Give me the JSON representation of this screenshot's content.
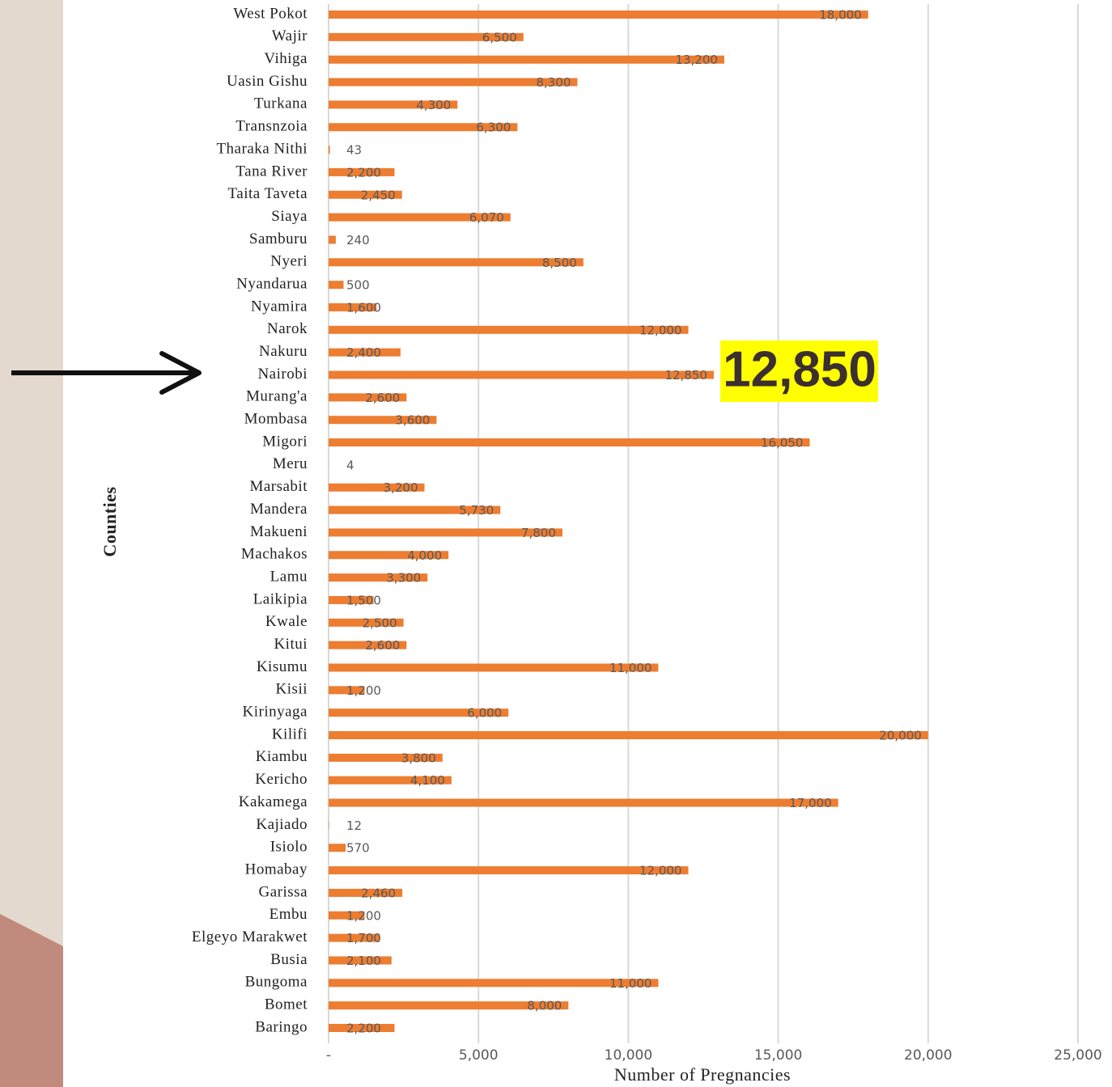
{
  "chart_data": {
    "type": "barh",
    "xlabel": "Number of Pregnancies",
    "ylabel": "Counties",
    "annotation": "12,850",
    "color": "#ed7d31",
    "grid": true,
    "categories": [
      "West Pokot",
      "Wajir",
      "Vihiga",
      "Uasin Gishu",
      "Turkana",
      "Transnzoia",
      "Tharaka Nithi",
      "Tana River",
      "Taita Taveta",
      "Siaya",
      "Samburu",
      "Nyeri",
      "Nyandarua",
      "Nyamira",
      "Narok",
      "Nakuru",
      "Nairobi",
      "Murang'a",
      "Mombasa",
      "Migori",
      "Meru",
      "Marsabit",
      "Mandera",
      "Makueni",
      "Machakos",
      "Lamu",
      "Laikipia",
      "Kwale",
      "Kitui",
      "Kisumu",
      "Kisii",
      "Kirinyaga",
      "Kilifi",
      "Kiambu",
      "Kericho",
      "Kakamega",
      "Kajiado",
      "Isiolo",
      "Homabay",
      "Garissa",
      "Embu",
      "Elgeyo Marakwet",
      "Busia",
      "Bungoma",
      "Bomet",
      "Baringo"
    ],
    "values": [
      18000,
      6500,
      13200,
      8300,
      4300,
      6300,
      43,
      2200,
      2450,
      6070,
      240,
      8500,
      500,
      1600,
      12000,
      2400,
      12850,
      2600,
      3600,
      16050,
      4,
      3200,
      5730,
      7800,
      4000,
      3300,
      1500,
      2500,
      2600,
      11000,
      1200,
      6000,
      20000,
      3800,
      4100,
      17000,
      12,
      570,
      12000,
      2460,
      1200,
      1700,
      2100,
      11000,
      8000,
      2200
    ],
    "value_labels": [
      "18,000",
      "6,500",
      "13,200",
      "8,300",
      "4,300",
      "6,300",
      "43",
      "2,200",
      "2,450",
      "6,070",
      "240",
      "8,500",
      "500",
      "1,600",
      "12,000",
      "2,400",
      "12,850",
      "2,600",
      "3,600",
      "16,050",
      "4",
      "3,200",
      "5,730",
      "7,800",
      "4,000",
      "3,300",
      "1,500",
      "2,500",
      "2,600",
      "11,000",
      "1,200",
      "6,000",
      "20,000",
      "3,800",
      "4,100",
      "17,000",
      "12",
      "570",
      "12,000",
      "2,460",
      "1,200",
      "1,700",
      "2,100",
      "11,000",
      "8,000",
      "2,200"
    ],
    "xlim": [
      0,
      25000
    ],
    "xticks": [
      {
        "value": 0,
        "label": "-"
      },
      {
        "value": 5000,
        "label": "5,000"
      },
      {
        "value": 10000,
        "label": "10,000"
      },
      {
        "value": 15000,
        "label": "15,000"
      },
      {
        "value": 20000,
        "label": "20,000"
      },
      {
        "value": 25000,
        "label": "25,000"
      }
    ]
  }
}
